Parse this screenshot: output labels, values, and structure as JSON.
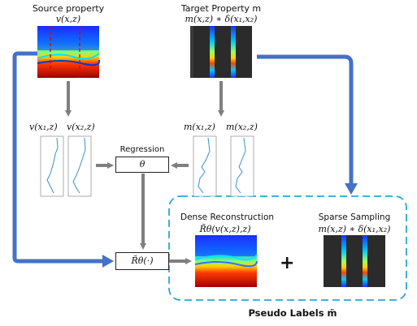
{
  "source": {
    "title": "Source property",
    "formula": "v(x,z)",
    "trace1_label": "v(x₁,z)",
    "trace2_label": "v(x₂,z)"
  },
  "target": {
    "title": "Target Property m",
    "formula": "m(x,z) ∗ δ(x₁,x₂)",
    "trace1_label": "m(x₁,z)",
    "trace2_label": "m(x₂,z)"
  },
  "regression": {
    "title": "Regression",
    "symbol": "θ"
  },
  "operator": {
    "symbol": "R̃θ(·)"
  },
  "dense": {
    "title": "Dense Reconstruction",
    "formula": "R̃θ(v(x,z),z)"
  },
  "sparse": {
    "title": "Sparse Sampling",
    "formula": "m(x,z) ∗ δ(x₁,x₂)"
  },
  "plus": "+",
  "pseudo_labels": "Pseudo Labels m̃",
  "colors": {
    "arrow_blue": "#4472c4",
    "arrow_gray": "#7f7f7f",
    "dashed_border": "#2aa6d6"
  }
}
